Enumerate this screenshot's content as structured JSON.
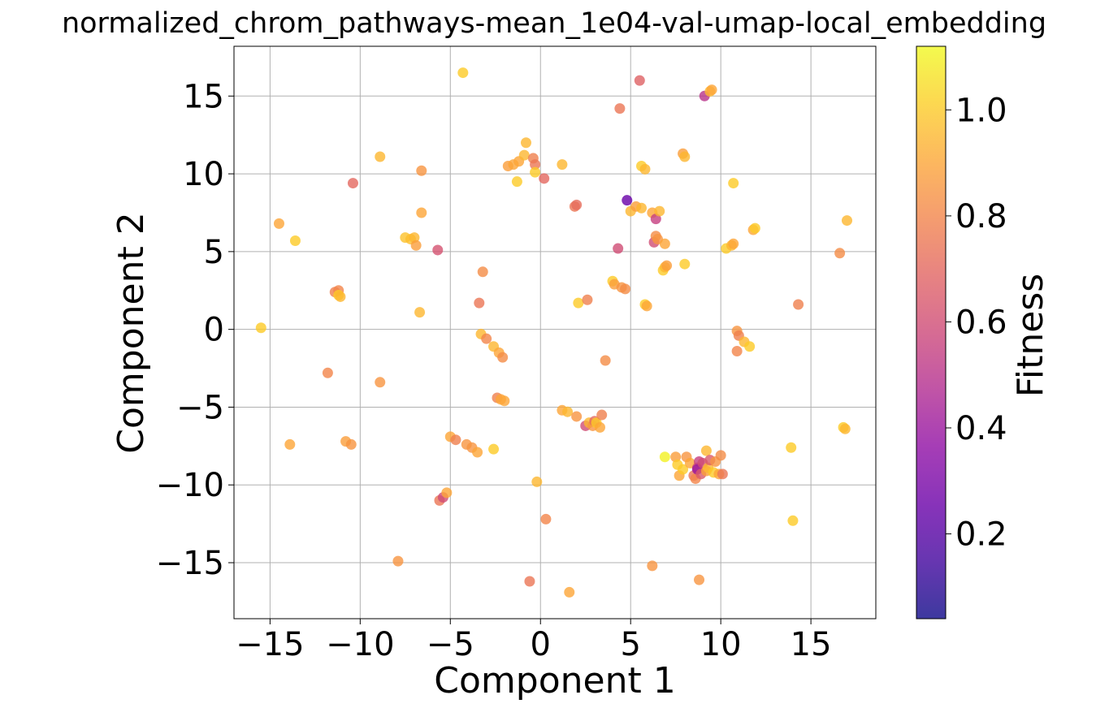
{
  "chart_data": {
    "type": "scatter",
    "title": "normalized_chrom_pathways-mean_1e04-val-umap-local_embedding",
    "xlabel": "Component 1",
    "ylabel": "Component 2",
    "xlim": [
      -17.0,
      18.6
    ],
    "ylim": [
      -18.6,
      18.2
    ],
    "xticks": [
      -15,
      -10,
      -5,
      0,
      5,
      10,
      15
    ],
    "xtick_labels": [
      "−15",
      "−10",
      "−5",
      "0",
      "5",
      "10",
      "15"
    ],
    "yticks": [
      -15,
      -10,
      -5,
      0,
      5,
      10,
      15
    ],
    "ytick_labels": [
      "−15",
      "−10",
      "−5",
      "0",
      "5",
      "10",
      "15"
    ],
    "grid": true,
    "colorbar": {
      "label": "Fitness",
      "range": [
        0.04,
        1.12
      ],
      "ticks": [
        0.2,
        0.4,
        0.6,
        0.8,
        1.0
      ],
      "tick_labels": [
        "0.2",
        "0.4",
        "0.6",
        "0.8",
        "1.0"
      ],
      "colormap": "plasma",
      "alpha": 0.8
    },
    "points": [
      {
        "x": -15.5,
        "y": 0.1,
        "fitness": 1.0
      },
      {
        "x": -14.5,
        "y": 6.8,
        "fitness": 0.9
      },
      {
        "x": -13.6,
        "y": 5.7,
        "fitness": 1.0
      },
      {
        "x": -13.9,
        "y": -7.4,
        "fitness": 0.9
      },
      {
        "x": -11.8,
        "y": -2.8,
        "fitness": 0.8
      },
      {
        "x": -11.4,
        "y": 2.4,
        "fitness": 0.78
      },
      {
        "x": -11.2,
        "y": 2.5,
        "fitness": 0.8
      },
      {
        "x": -11.2,
        "y": 2.2,
        "fitness": 1.0
      },
      {
        "x": -11.1,
        "y": 2.1,
        "fitness": 0.95
      },
      {
        "x": -10.8,
        "y": -7.2,
        "fitness": 0.88
      },
      {
        "x": -10.5,
        "y": -7.4,
        "fitness": 0.85
      },
      {
        "x": -10.4,
        "y": 9.4,
        "fitness": 0.7
      },
      {
        "x": -8.9,
        "y": 11.1,
        "fitness": 0.95
      },
      {
        "x": -8.9,
        "y": -3.4,
        "fitness": 0.85
      },
      {
        "x": -7.9,
        "y": -14.9,
        "fitness": 0.85
      },
      {
        "x": -7.5,
        "y": 5.9,
        "fitness": 0.98
      },
      {
        "x": -7.2,
        "y": 5.8,
        "fitness": 0.97
      },
      {
        "x": -7.0,
        "y": 5.9,
        "fitness": 0.95
      },
      {
        "x": -6.9,
        "y": 5.4,
        "fitness": 0.88
      },
      {
        "x": -6.7,
        "y": 1.1,
        "fitness": 0.95
      },
      {
        "x": -6.6,
        "y": 10.2,
        "fitness": 0.85
      },
      {
        "x": -6.6,
        "y": 7.5,
        "fitness": 0.9
      },
      {
        "x": -5.7,
        "y": 5.1,
        "fitness": 0.62
      },
      {
        "x": -5.6,
        "y": -11.0,
        "fitness": 0.75
      },
      {
        "x": -5.4,
        "y": -10.8,
        "fitness": 0.6
      },
      {
        "x": -5.2,
        "y": -10.5,
        "fitness": 0.9
      },
      {
        "x": -5.0,
        "y": -6.9,
        "fitness": 0.9
      },
      {
        "x": -4.7,
        "y": -7.1,
        "fitness": 0.78
      },
      {
        "x": -4.3,
        "y": 16.5,
        "fitness": 1.0
      },
      {
        "x": -4.1,
        "y": -7.4,
        "fitness": 0.85
      },
      {
        "x": -3.8,
        "y": -7.6,
        "fitness": 0.85
      },
      {
        "x": -3.5,
        "y": -7.9,
        "fitness": 0.9
      },
      {
        "x": -3.4,
        "y": 1.7,
        "fitness": 0.75
      },
      {
        "x": -3.3,
        "y": -0.3,
        "fitness": 0.95
      },
      {
        "x": -3.2,
        "y": 3.7,
        "fitness": 0.82
      },
      {
        "x": -3.0,
        "y": -0.6,
        "fitness": 0.8
      },
      {
        "x": -2.6,
        "y": -1.1,
        "fitness": 0.95
      },
      {
        "x": -2.6,
        "y": -7.7,
        "fitness": 1.0
      },
      {
        "x": -2.4,
        "y": -4.4,
        "fitness": 0.78
      },
      {
        "x": -2.3,
        "y": -1.5,
        "fitness": 0.9
      },
      {
        "x": -2.2,
        "y": -4.5,
        "fitness": 0.9
      },
      {
        "x": -2.0,
        "y": -4.6,
        "fitness": 0.9
      },
      {
        "x": -2.1,
        "y": -1.8,
        "fitness": 0.82
      },
      {
        "x": -1.8,
        "y": 10.5,
        "fitness": 0.88
      },
      {
        "x": -1.5,
        "y": 10.6,
        "fitness": 0.9
      },
      {
        "x": -1.3,
        "y": 9.5,
        "fitness": 1.0
      },
      {
        "x": -1.2,
        "y": 10.8,
        "fitness": 0.9
      },
      {
        "x": -0.9,
        "y": 11.2,
        "fitness": 0.95
      },
      {
        "x": -0.8,
        "y": 12.0,
        "fitness": 0.95
      },
      {
        "x": -0.6,
        "y": -16.2,
        "fitness": 0.75
      },
      {
        "x": -0.4,
        "y": 11.0,
        "fitness": 0.78
      },
      {
        "x": -0.3,
        "y": 10.6,
        "fitness": 0.75
      },
      {
        "x": -0.3,
        "y": 10.1,
        "fitness": 1.0
      },
      {
        "x": -0.2,
        "y": -9.8,
        "fitness": 0.95
      },
      {
        "x": 0.2,
        "y": 9.7,
        "fitness": 0.7
      },
      {
        "x": 0.3,
        "y": -12.2,
        "fitness": 0.8
      },
      {
        "x": 1.2,
        "y": 10.6,
        "fitness": 0.95
      },
      {
        "x": 1.2,
        "y": -5.2,
        "fitness": 0.9
      },
      {
        "x": 1.5,
        "y": -5.3,
        "fitness": 0.95
      },
      {
        "x": 1.6,
        "y": -16.9,
        "fitness": 0.9
      },
      {
        "x": 1.9,
        "y": 7.9,
        "fitness": 0.75
      },
      {
        "x": 2.0,
        "y": 8.0,
        "fitness": 0.72
      },
      {
        "x": 2.0,
        "y": -5.6,
        "fitness": 0.85
      },
      {
        "x": 2.1,
        "y": 1.7,
        "fitness": 1.0
      },
      {
        "x": 2.5,
        "y": -6.2,
        "fitness": 0.6
      },
      {
        "x": 2.6,
        "y": 1.9,
        "fitness": 0.78
      },
      {
        "x": 2.7,
        "y": -6.0,
        "fitness": 0.95
      },
      {
        "x": 2.9,
        "y": -6.2,
        "fitness": 0.85
      },
      {
        "x": 3.0,
        "y": -5.9,
        "fitness": 0.7
      },
      {
        "x": 3.1,
        "y": -6.0,
        "fitness": 1.0
      },
      {
        "x": 3.3,
        "y": -6.3,
        "fitness": 0.9
      },
      {
        "x": 3.4,
        "y": -5.5,
        "fitness": 0.78
      },
      {
        "x": 3.6,
        "y": -2.0,
        "fitness": 0.82
      },
      {
        "x": 4.0,
        "y": 3.1,
        "fitness": 1.0
      },
      {
        "x": 4.1,
        "y": 2.9,
        "fitness": 0.88
      },
      {
        "x": 4.3,
        "y": 5.2,
        "fitness": 0.6
      },
      {
        "x": 4.4,
        "y": 14.2,
        "fitness": 0.75
      },
      {
        "x": 4.5,
        "y": 2.7,
        "fitness": 0.85
      },
      {
        "x": 4.7,
        "y": 2.6,
        "fitness": 0.82
      },
      {
        "x": 4.8,
        "y": 8.3,
        "fitness": 0.25
      },
      {
        "x": 5.0,
        "y": 7.6,
        "fitness": 0.95
      },
      {
        "x": 5.3,
        "y": 7.9,
        "fitness": 0.88
      },
      {
        "x": 5.5,
        "y": 16.0,
        "fitness": 0.68
      },
      {
        "x": 5.6,
        "y": 10.5,
        "fitness": 1.0
      },
      {
        "x": 5.6,
        "y": 7.8,
        "fitness": 0.95
      },
      {
        "x": 5.8,
        "y": 10.3,
        "fitness": 0.95
      },
      {
        "x": 5.8,
        "y": 1.6,
        "fitness": 1.0
      },
      {
        "x": 5.9,
        "y": 1.5,
        "fitness": 0.9
      },
      {
        "x": 6.2,
        "y": -15.2,
        "fitness": 0.85
      },
      {
        "x": 6.2,
        "y": 7.5,
        "fitness": 0.9
      },
      {
        "x": 6.3,
        "y": 5.6,
        "fitness": 0.6
      },
      {
        "x": 6.4,
        "y": 7.1,
        "fitness": 0.55
      },
      {
        "x": 6.4,
        "y": 6.0,
        "fitness": 0.82
      },
      {
        "x": 6.5,
        "y": 5.8,
        "fitness": 0.85
      },
      {
        "x": 6.6,
        "y": 7.6,
        "fitness": 0.95
      },
      {
        "x": 6.8,
        "y": 3.8,
        "fitness": 1.0
      },
      {
        "x": 6.9,
        "y": 5.5,
        "fitness": 0.9
      },
      {
        "x": 6.9,
        "y": 4.0,
        "fitness": 0.95
      },
      {
        "x": 7.0,
        "y": 4.1,
        "fitness": 0.88
      },
      {
        "x": 6.9,
        "y": -8.2,
        "fitness": 1.1
      },
      {
        "x": 7.5,
        "y": -8.2,
        "fitness": 0.88
      },
      {
        "x": 7.6,
        "y": -8.7,
        "fitness": 1.0
      },
      {
        "x": 7.7,
        "y": -9.4,
        "fitness": 0.9
      },
      {
        "x": 7.9,
        "y": -9.0,
        "fitness": 1.0
      },
      {
        "x": 7.9,
        "y": 11.3,
        "fitness": 0.88
      },
      {
        "x": 8.0,
        "y": 11.1,
        "fitness": 0.95
      },
      {
        "x": 8.0,
        "y": 4.2,
        "fitness": 1.0
      },
      {
        "x": 8.1,
        "y": -8.2,
        "fitness": 0.85
      },
      {
        "x": 8.3,
        "y": -8.6,
        "fitness": 0.9
      },
      {
        "x": 8.5,
        "y": -9.4,
        "fitness": 0.75
      },
      {
        "x": 8.6,
        "y": -9.6,
        "fitness": 0.8
      },
      {
        "x": 8.7,
        "y": -8.9,
        "fitness": 0.6
      },
      {
        "x": 8.8,
        "y": -8.5,
        "fitness": 0.55
      },
      {
        "x": 8.7,
        "y": -9.0,
        "fitness": 0.4
      },
      {
        "x": 8.8,
        "y": -16.1,
        "fitness": 0.85
      },
      {
        "x": 8.9,
        "y": -9.3,
        "fitness": 0.65
      },
      {
        "x": 9.0,
        "y": -8.6,
        "fitness": 0.6
      },
      {
        "x": 9.1,
        "y": 15.0,
        "fitness": 0.5
      },
      {
        "x": 9.2,
        "y": -7.8,
        "fitness": 0.95
      },
      {
        "x": 9.2,
        "y": -9.1,
        "fitness": 0.88
      },
      {
        "x": 9.3,
        "y": -8.9,
        "fitness": 0.95
      },
      {
        "x": 9.4,
        "y": -8.4,
        "fitness": 0.65
      },
      {
        "x": 9.4,
        "y": 15.3,
        "fitness": 0.95
      },
      {
        "x": 9.5,
        "y": 15.4,
        "fitness": 0.9
      },
      {
        "x": 9.6,
        "y": -9.2,
        "fitness": 1.0
      },
      {
        "x": 9.7,
        "y": -8.5,
        "fitness": 0.85
      },
      {
        "x": 9.9,
        "y": -9.3,
        "fitness": 0.9
      },
      {
        "x": 10.0,
        "y": -8.1,
        "fitness": 0.82
      },
      {
        "x": 10.1,
        "y": -9.3,
        "fitness": 0.75
      },
      {
        "x": 10.3,
        "y": 5.2,
        "fitness": 1.0
      },
      {
        "x": 10.6,
        "y": 5.4,
        "fitness": 0.95
      },
      {
        "x": 10.7,
        "y": 9.4,
        "fitness": 1.0
      },
      {
        "x": 10.7,
        "y": 5.5,
        "fitness": 0.9
      },
      {
        "x": 10.9,
        "y": -0.1,
        "fitness": 0.85
      },
      {
        "x": 10.9,
        "y": -1.4,
        "fitness": 0.8
      },
      {
        "x": 11.0,
        "y": -0.4,
        "fitness": 0.78
      },
      {
        "x": 11.3,
        "y": -0.8,
        "fitness": 0.95
      },
      {
        "x": 11.6,
        "y": -1.1,
        "fitness": 1.0
      },
      {
        "x": 11.8,
        "y": 6.4,
        "fitness": 0.9
      },
      {
        "x": 11.9,
        "y": 6.5,
        "fitness": 1.0
      },
      {
        "x": 13.9,
        "y": -7.6,
        "fitness": 1.0
      },
      {
        "x": 14.0,
        "y": -12.3,
        "fitness": 1.0
      },
      {
        "x": 14.3,
        "y": 1.6,
        "fitness": 0.78
      },
      {
        "x": 16.6,
        "y": 4.9,
        "fitness": 0.82
      },
      {
        "x": 16.8,
        "y": -6.3,
        "fitness": 1.0
      },
      {
        "x": 16.9,
        "y": -6.4,
        "fitness": 0.95
      },
      {
        "x": 17.0,
        "y": 7.0,
        "fitness": 0.95
      }
    ]
  }
}
